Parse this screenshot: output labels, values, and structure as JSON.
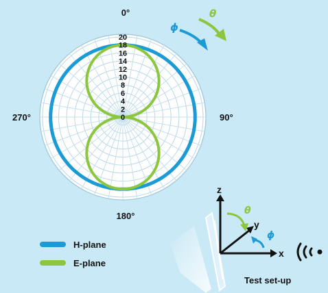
{
  "chart_data": {
    "type": "polar",
    "angle_labels": [
      {
        "angle": 0,
        "text": "0°"
      },
      {
        "angle": 90,
        "text": "90°"
      },
      {
        "angle": 180,
        "text": "180°"
      },
      {
        "angle": 270,
        "text": "270°"
      }
    ],
    "radial_ticks": [
      "0",
      "2",
      "4",
      "6",
      "8",
      "10",
      "12",
      "14",
      "16",
      "18",
      "20"
    ],
    "rlim": [
      0,
      20
    ],
    "grid": true,
    "legend": {
      "placement": "bottom-left",
      "entries": [
        {
          "name": "H-plane",
          "color": "#1b9ad6"
        },
        {
          "name": "E-plane",
          "color": "#8cc63f"
        }
      ]
    },
    "series": [
      {
        "name": "H-plane",
        "color": "#1b9ad6",
        "pattern": "omni",
        "radius": 18
      },
      {
        "name": "E-plane",
        "color": "#8cc63f",
        "pattern": "figure-eight",
        "max_radius": 18,
        "null_at_deg": [
          90,
          270
        ]
      }
    ]
  },
  "rotation_labels": {
    "phi": "ϕ",
    "theta": "θ"
  },
  "setup": {
    "axes": {
      "x": "x",
      "y": "y",
      "z": "z"
    },
    "phi": "ϕ",
    "theta": "θ",
    "caption": "Test set-up"
  }
}
